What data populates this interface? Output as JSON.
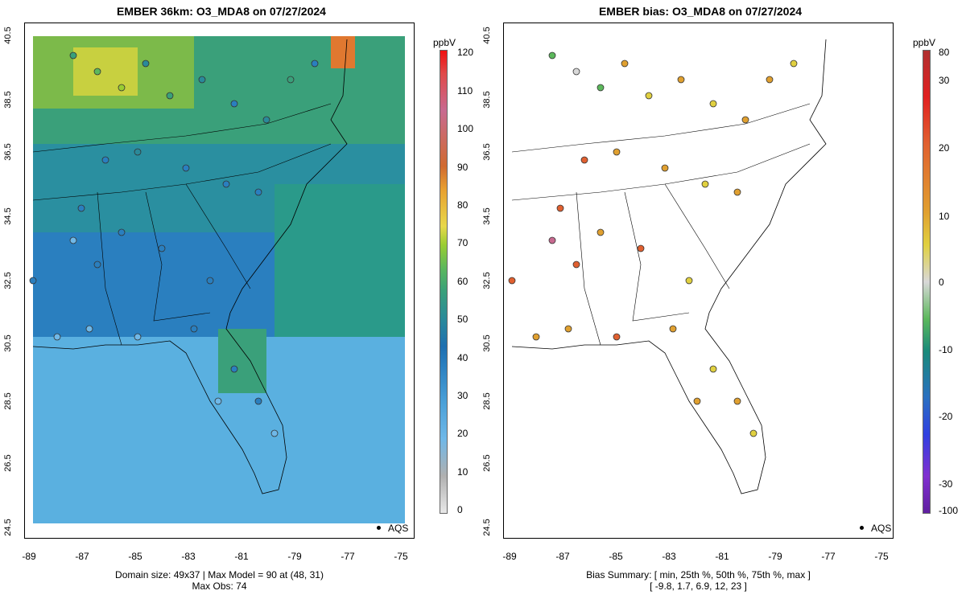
{
  "left_panel": {
    "title": "EMBER 36km: O3_MDA8 on 07/27/2024",
    "y_ticks": [
      "40.5",
      "38.5",
      "36.5",
      "34.5",
      "32.5",
      "30.5",
      "28.5",
      "26.5",
      "24.5"
    ],
    "x_ticks": [
      "-89",
      "-87",
      "-85",
      "-83",
      "-81",
      "-79",
      "-77",
      "-75"
    ],
    "footer_line1": "Domain size: 49x37 | Max Model = 90 at (48, 31)",
    "footer_line2": "Max Obs: 74",
    "legend_label": "AQS",
    "colorbar": {
      "unit": "ppbV",
      "labels": [
        "120",
        "110",
        "100",
        "90",
        "80",
        "70",
        "60",
        "50",
        "40",
        "30",
        "20",
        "10",
        "0"
      ],
      "colors": [
        "#e8e8e8",
        "#b0b0b0",
        "#6fb8e8",
        "#4aa0d8",
        "#2a7fbf",
        "#1e6fb0",
        "#2a8a9a",
        "#3aa07a",
        "#5cb85c",
        "#9acd32",
        "#e8d84a",
        "#e8a030",
        "#d06a30",
        "#c86a90",
        "#e04a4a",
        "#f01010"
      ]
    }
  },
  "right_panel": {
    "title": "EMBER bias: O3_MDA8 on 07/27/2024",
    "y_ticks": [
      "40.5",
      "38.5",
      "36.5",
      "34.5",
      "32.5",
      "30.5",
      "28.5",
      "26.5",
      "24.5"
    ],
    "x_ticks": [
      "-89",
      "-87",
      "-85",
      "-83",
      "-81",
      "-79",
      "-77",
      "-75"
    ],
    "footer_line1": "Bias Summary: [ min, 25th %, 50th %, 75th %, max ]",
    "footer_line2": "[ -9.8,   1.7,   6.9,   12,   23 ]",
    "legend_label": "AQS",
    "colorbar": {
      "unit": "ppbV",
      "labels": [
        "80",
        "30",
        "20",
        "10",
        "0",
        "-10",
        "-20",
        "-30",
        "-100"
      ],
      "colors": [
        "#b03030",
        "#e02020",
        "#e06030",
        "#e0a030",
        "#e0d040",
        "#d8d8d8",
        "#5cb85c",
        "#1a8a7a",
        "#2a70c0",
        "#3040e0",
        "#8030d0",
        "#6020a0"
      ]
    }
  }
}
